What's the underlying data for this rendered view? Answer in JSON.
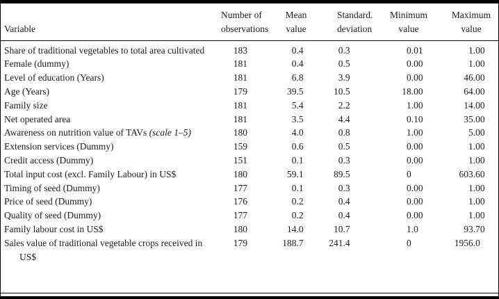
{
  "colors": {
    "text": "#1c1c1c",
    "rule": "#000000",
    "background": "#ffffff"
  },
  "table": {
    "columns": [
      {
        "id": "variable",
        "label": "Variable",
        "label_lines": [
          "Variable"
        ]
      },
      {
        "id": "observations",
        "label": "Number of observations",
        "label_lines": [
          "Number of",
          "observations"
        ]
      },
      {
        "id": "mean",
        "label": "Mean value",
        "label_lines": [
          "Mean",
          "value"
        ]
      },
      {
        "id": "std_dev",
        "label": "Standard. deviation",
        "label_lines": [
          "Standard.",
          "deviation"
        ]
      },
      {
        "id": "minimum",
        "label": "Minimum value",
        "label_lines": [
          "Minimum",
          "value"
        ]
      },
      {
        "id": "maximum",
        "label": "Maximum value",
        "label_lines": [
          "Maximum",
          "value"
        ]
      }
    ],
    "rows": [
      {
        "variable": "Share of traditional vegetables to total area cultivated",
        "italic": "",
        "observations": "183",
        "mean": "0.4",
        "std_dev": "0.3",
        "minimum": "0.01",
        "maximum": "1.00"
      },
      {
        "variable": "Female (dummy)",
        "italic": "",
        "observations": "181",
        "mean": "0.4",
        "std_dev": "0.5",
        "minimum": "0.00",
        "maximum": "1.00"
      },
      {
        "variable": "Level of education (Years)",
        "italic": "",
        "observations": "181",
        "mean": "6.8",
        "std_dev": "3.9",
        "minimum": "0.00",
        "maximum": "46.00"
      },
      {
        "variable": "Age (Years)",
        "italic": "",
        "observations": "179",
        "mean": "39.5",
        "std_dev": "10.5",
        "minimum": "18.00",
        "maximum": "64.00"
      },
      {
        "variable": "Family size",
        "italic": "",
        "observations": "181",
        "mean": "5.4",
        "std_dev": "2.2",
        "minimum": "1.00",
        "maximum": "14.00"
      },
      {
        "variable": "Net operated area",
        "italic": "",
        "observations": "181",
        "mean": "3.5",
        "std_dev": "4.4",
        "minimum": "0.10",
        "maximum": "35.00"
      },
      {
        "variable": "Awareness on nutrition value of TAVs",
        "italic": "(scale 1–5)",
        "observations": "180",
        "mean": "4.0",
        "std_dev": "0.8",
        "minimum": "1.00",
        "maximum": "5.00"
      },
      {
        "variable": "Extension services (Dummy)",
        "italic": "",
        "observations": "159",
        "mean": "0.6",
        "std_dev": "0.5",
        "minimum": "0.00",
        "maximum": "1.00"
      },
      {
        "variable": "Credit access (Dummy)",
        "italic": "",
        "observations": "151",
        "mean": "0.1",
        "std_dev": "0.3",
        "minimum": "0.00",
        "maximum": "1.00"
      },
      {
        "variable": "Total input cost (excl. Family Labour) in US$",
        "italic": "",
        "observations": "180",
        "mean": "59.1",
        "std_dev": "89.5",
        "minimum": "0",
        "maximum": "603.60"
      },
      {
        "variable": "Timing of seed (Dummy)",
        "italic": "",
        "observations": "177",
        "mean": "0.1",
        "std_dev": "0.3",
        "minimum": "0.00",
        "maximum": "1.00"
      },
      {
        "variable": "Price of seed (Dummy)",
        "italic": "",
        "observations": "176",
        "mean": "0.2",
        "std_dev": "0.4",
        "minimum": "0.00",
        "maximum": "1.00"
      },
      {
        "variable": "Quality of seed (Dummy)",
        "italic": "",
        "observations": "177",
        "mean": "0.2",
        "std_dev": "0.4",
        "minimum": "0.00",
        "maximum": "1.00"
      },
      {
        "variable": "Family labour cost in US$",
        "italic": "",
        "observations": "180",
        "mean": "14.0",
        "std_dev": "10.7",
        "minimum": "1.0",
        "maximum": "93.70"
      },
      {
        "variable": "Sales value of traditional vegetable crops received in US$",
        "italic": "",
        "observations": "179",
        "mean": "188.7",
        "std_dev": "241.4",
        "minimum": "0",
        "maximum": "1956.0"
      }
    ]
  },
  "chart_data": {
    "type": "table",
    "title": "",
    "columns": [
      "Variable",
      "Number of observations",
      "Mean value",
      "Standard. deviation",
      "Minimum value",
      "Maximum value"
    ]
  }
}
